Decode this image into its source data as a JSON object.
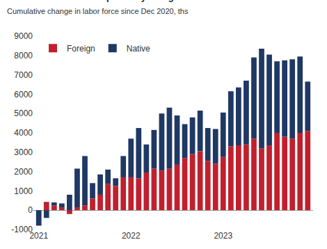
{
  "chart_data": {
    "type": "bar",
    "title": "US: Labor force decomposed by foreign vs native born",
    "subtitle": "Cumulative change in labor force since Dec 2020, ths",
    "stacked": true,
    "legend": "top left",
    "grid": false,
    "categories": [
      "2021",
      null,
      null,
      null,
      null,
      null,
      null,
      null,
      null,
      null,
      null,
      null,
      "2022",
      null,
      null,
      null,
      null,
      null,
      null,
      null,
      null,
      null,
      null,
      null,
      "2023",
      null,
      null,
      null,
      null,
      null,
      null,
      null,
      null,
      null,
      null,
      null
    ],
    "series": [
      {
        "name": "Foreign",
        "color": "#c0202e",
        "values": [
          0,
          430,
          250,
          150,
          -200,
          150,
          250,
          600,
          800,
          1350,
          1250,
          1700,
          1700,
          1650,
          1950,
          2150,
          2050,
          2150,
          2350,
          2700,
          2900,
          3050,
          2550,
          2400,
          2750,
          3300,
          3350,
          3400,
          3700,
          3200,
          3350,
          4000,
          3800,
          3700,
          4000,
          4100
        ]
      },
      {
        "name": "Native",
        "color": "#1f3864",
        "values": [
          -800,
          -400,
          150,
          200,
          800,
          2000,
          2550,
          800,
          1050,
          750,
          400,
          1100,
          2000,
          2600,
          1450,
          2000,
          2950,
          3150,
          2550,
          1750,
          1900,
          2100,
          1700,
          1800,
          2300,
          2850,
          3000,
          3300,
          4200,
          5150,
          4700,
          3700,
          3950,
          4100,
          3950,
          2550
        ]
      }
    ],
    "ylim": [
      -1000,
      9000
    ],
    "yticks": [
      -1000,
      0,
      1000,
      2000,
      3000,
      4000,
      5000,
      6000,
      7000,
      8000,
      9000
    ]
  }
}
